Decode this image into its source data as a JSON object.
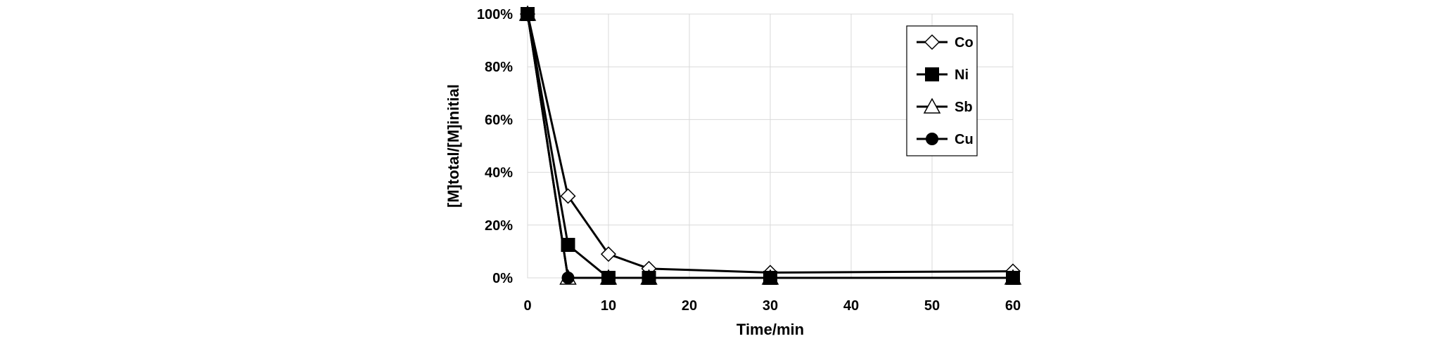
{
  "chart_data": {
    "type": "line",
    "title": "",
    "xlabel": "Time/min",
    "ylabel": "[M]total/[M]initial",
    "x": [
      0,
      5,
      10,
      15,
      30,
      60
    ],
    "xlim": [
      0,
      60
    ],
    "ylim": [
      0,
      100
    ],
    "x_ticks": [
      "0",
      "10",
      "20",
      "30",
      "40",
      "50",
      "60"
    ],
    "y_ticks": [
      "0%",
      "20%",
      "40%",
      "60%",
      "80%",
      "100%"
    ],
    "grid": true,
    "legend_position": "top-right",
    "series": [
      {
        "name": "Co",
        "marker": "diamond-open",
        "values": [
          100,
          31,
          9,
          3.5,
          2,
          2.5
        ]
      },
      {
        "name": "Ni",
        "marker": "square-filled",
        "values": [
          100,
          12.5,
          0,
          0,
          0,
          0
        ]
      },
      {
        "name": "Sb",
        "marker": "triangle-open",
        "values": [
          100,
          0,
          0,
          0,
          0,
          0
        ]
      },
      {
        "name": "Cu",
        "marker": "circle-filled",
        "values": [
          100,
          0,
          0,
          0,
          0,
          0
        ]
      }
    ]
  }
}
